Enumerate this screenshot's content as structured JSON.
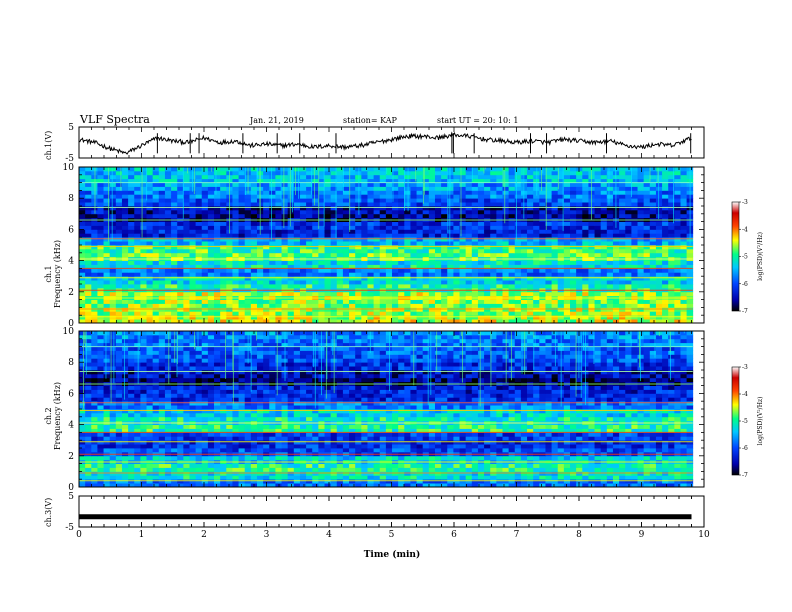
{
  "header": {
    "title": "VLF Spectra",
    "date": "Jan. 21, 2019",
    "station": "station= KAP",
    "start": "start UT =  20: 10: 1"
  },
  "chart_data": [
    {
      "type": "line",
      "panel": "ch1-waveform",
      "ylabel": "ch.1(V)",
      "ylim": [
        -5,
        5
      ],
      "yticks": [
        "5",
        "-5"
      ],
      "xlim": [
        0,
        10
      ],
      "x": [
        0,
        0.25,
        0.5,
        0.75,
        1.0,
        1.25,
        1.5,
        1.75,
        2.0,
        2.25,
        2.5,
        2.75,
        3.0,
        3.25,
        3.5,
        3.75,
        4.0,
        4.25,
        4.5,
        4.75,
        5.0,
        5.25,
        5.5,
        5.75,
        6.0,
        6.25,
        6.5,
        6.75,
        7.0,
        7.25,
        7.5,
        7.75,
        8.0,
        8.25,
        8.5,
        8.75,
        9.0,
        9.25,
        9.5,
        9.8
      ],
      "y": [
        1,
        0,
        -2,
        -3.5,
        -1,
        1.5,
        0.5,
        0,
        1.5,
        0,
        0.5,
        -1,
        -0.5,
        -1,
        -0.5,
        -1.5,
        -1,
        -1.5,
        -1,
        0,
        1,
        2,
        2,
        1.5,
        2.5,
        2,
        1,
        0.5,
        0,
        0.5,
        0,
        1,
        0.5,
        0,
        0.5,
        -1,
        -1.5,
        -0.5,
        -1,
        1.5
      ]
    },
    {
      "type": "heatmap",
      "panel": "ch1-spectrogram",
      "ylabel": "ch.1 Frequency (kHz)",
      "ylim": [
        0,
        10
      ],
      "yticks": [
        "0",
        "2",
        "4",
        "6",
        "8",
        "10"
      ],
      "xlim": [
        0,
        10
      ],
      "band_center_khz": [
        0.25,
        0.75,
        1.25,
        1.75,
        2.25,
        2.75,
        3.25,
        3.75,
        4.25,
        4.75,
        5.25,
        5.75,
        6.25,
        6.75,
        7.25,
        7.75,
        8.25,
        8.75,
        9.25,
        9.75
      ],
      "band_log_psd": [
        -4.5,
        -4.6,
        -4.7,
        -4.6,
        -5.0,
        -5.3,
        -5.8,
        -5.2,
        -4.8,
        -4.9,
        -5.5,
        -6.3,
        -6.2,
        -6.6,
        -6.5,
        -6.0,
        -5.8,
        -5.6,
        -5.4,
        -5.4
      ],
      "colorbar": {
        "range": [
          -7,
          -3
        ],
        "ticks": [
          "-3",
          "-4",
          "-5",
          "-6",
          "-7"
        ],
        "label": "log(PSD)(V²/Hz)"
      }
    },
    {
      "type": "heatmap",
      "panel": "ch2-spectrogram",
      "ylabel": "ch.2 Frequency (kHz)",
      "ylim": [
        0,
        10
      ],
      "yticks": [
        "0",
        "2",
        "4",
        "6",
        "8",
        "10"
      ],
      "xlim": [
        0,
        10
      ],
      "band_center_khz": [
        0.25,
        0.75,
        1.25,
        1.75,
        2.25,
        2.75,
        3.25,
        3.75,
        4.25,
        4.75,
        5.25,
        5.75,
        6.25,
        6.75,
        7.25,
        7.75,
        8.25,
        8.75,
        9.25,
        9.75
      ],
      "band_log_psd": [
        -5.8,
        -5.2,
        -5.0,
        -5.3,
        -6.0,
        -6.2,
        -6.1,
        -5.0,
        -5.1,
        -5.3,
        -5.8,
        -6.2,
        -6.3,
        -6.7,
        -6.5,
        -6.2,
        -6.0,
        -5.9,
        -5.8,
        -5.7
      ],
      "colorbar": {
        "range": [
          -7,
          -3
        ],
        "ticks": [
          "-3",
          "-4",
          "-5",
          "-6",
          "-7"
        ],
        "label": "log(PSD)(V²/Hz)"
      }
    },
    {
      "type": "line",
      "panel": "ch3-waveform",
      "ylabel": "ch.3(V)",
      "ylim": [
        -5,
        5
      ],
      "yticks": [
        "5",
        "-5"
      ],
      "xlim": [
        0,
        10
      ],
      "x": [
        0,
        9.8
      ],
      "y": [
        -1.7,
        -1.7
      ]
    }
  ],
  "xaxis": {
    "label": "Time (min)",
    "ticks": [
      "0",
      "1",
      "2",
      "3",
      "4",
      "5",
      "6",
      "7",
      "8",
      "9",
      "10"
    ]
  },
  "colormap_stops": [
    "#000000",
    "#0000aa",
    "#0044ff",
    "#00c8ff",
    "#00ff88",
    "#ffff00",
    "#ff4400",
    "#cc0000",
    "#ffffff"
  ]
}
